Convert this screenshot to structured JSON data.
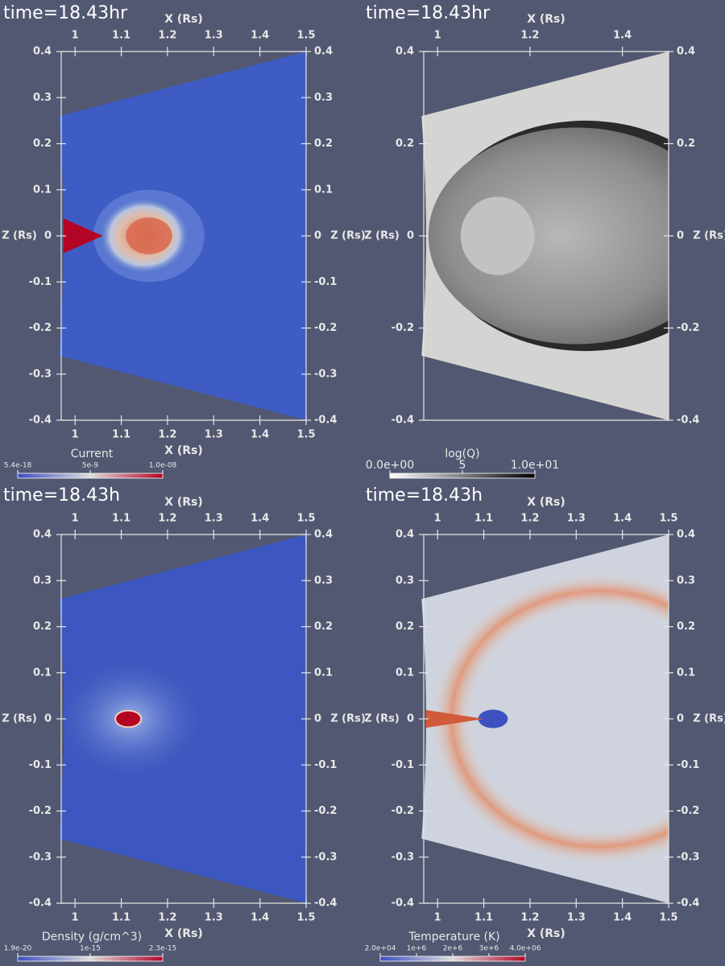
{
  "chart_data": [
    {
      "type": "heatmap",
      "title": "time=18.43hr",
      "xlabel": "X (Rs)",
      "ylabel": "Z (Rs)",
      "xlim": [
        0.97,
        1.5
      ],
      "ylim": [
        -0.4,
        0.4
      ],
      "x_ticks": [
        "1",
        "1.1",
        "1.2",
        "1.3",
        "1.4",
        "1.5"
      ],
      "y_ticks": [
        "0.4",
        "0.3",
        "0.2",
        "0.1",
        "0",
        "-0.1",
        "-0.2",
        "-0.3",
        "-0.4"
      ],
      "top_axis_label": true,
      "bottom_axis_label": true,
      "colorbar": {
        "title": "Current",
        "labels": [
          "5.4e-18",
          "5e-9",
          "1.0e-08"
        ],
        "colormap": "coolwarm"
      }
    },
    {
      "type": "heatmap",
      "title": "time=18.43hr",
      "xlabel": "X (Rs)",
      "ylabel": "Z (Rs)",
      "xlim": [
        0.97,
        1.5
      ],
      "ylim": [
        -0.4,
        0.4
      ],
      "x_ticks": [
        "1",
        "1.2",
        "1.4"
      ],
      "y_ticks": [
        "0.4",
        "0.2",
        "0",
        "-0.2",
        "-0.4"
      ],
      "top_axis_label": true,
      "bottom_axis_label": false,
      "colorbar": {
        "title": "log(Q)",
        "labels": [
          "0.0e+00",
          "5",
          "1.0e+01"
        ],
        "colormap": "grayscale"
      }
    },
    {
      "type": "heatmap",
      "title": "time=18.43h",
      "xlabel": "X (Rs)",
      "ylabel": "Z (Rs)",
      "xlim": [
        0.97,
        1.5
      ],
      "ylim": [
        -0.4,
        0.4
      ],
      "x_ticks": [
        "1",
        "1.1",
        "1.2",
        "1.3",
        "1.4",
        "1.5"
      ],
      "y_ticks": [
        "0.4",
        "0.3",
        "0.2",
        "0.1",
        "0",
        "-0.1",
        "-0.2",
        "-0.3",
        "-0.4"
      ],
      "top_axis_label": true,
      "bottom_axis_label": true,
      "colorbar": {
        "title": "Density (g/cm^3)",
        "labels": [
          "1.9e-20",
          "1e-15",
          "2.3e-15"
        ],
        "colormap": "coolwarm"
      }
    },
    {
      "type": "heatmap",
      "title": "time=18.43h",
      "xlabel": "X (Rs)",
      "ylabel": "Z (Rs)",
      "xlim": [
        0.97,
        1.5
      ],
      "ylim": [
        -0.4,
        0.4
      ],
      "x_ticks": [
        "1",
        "1.1",
        "1.2",
        "1.3",
        "1.4",
        "1.5"
      ],
      "y_ticks": [
        "0.4",
        "0.3",
        "0.2",
        "0.1",
        "0",
        "-0.1",
        "-0.2",
        "-0.3",
        "-0.4"
      ],
      "top_axis_label": true,
      "bottom_axis_label": true,
      "colorbar": {
        "title": "Temperature (K)",
        "labels": [
          "2.0e+04",
          "1e+6",
          "2e+6",
          "3e+6",
          "4.0e+06"
        ],
        "colormap": "coolwarm"
      }
    }
  ],
  "colors": {
    "background": "#525871",
    "cool": "#3b4cc0",
    "neutral": "#dddcdc",
    "warm": "#b40426"
  }
}
